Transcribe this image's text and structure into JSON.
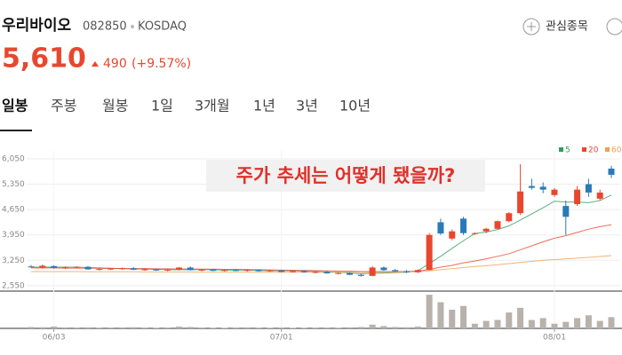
{
  "header": {
    "name": "우리바이오",
    "code": "082850",
    "market": "KOSDAQ",
    "watch": "관심종목"
  },
  "quote": {
    "price": "5,610",
    "change": "490",
    "percent": "(+9.57%)"
  },
  "tabs": [
    "일봉",
    "주봉",
    "월봉",
    "1일",
    "3개월",
    "1년",
    "3년",
    "10년"
  ],
  "chart_data": {
    "type": "candlestick",
    "annotation": "주가 추세는 어떻게 됐을까?",
    "categories": [
      null,
      null,
      "06/03",
      null,
      null,
      null,
      null,
      null,
      null,
      null,
      null,
      null,
      null,
      null,
      null,
      null,
      null,
      null,
      null,
      null,
      null,
      null,
      "07/01",
      null,
      null,
      null,
      null,
      null,
      null,
      null,
      null,
      null,
      null,
      null,
      null,
      null,
      null,
      null,
      null,
      null,
      null,
      null,
      null,
      null,
      null,
      null,
      "08/01",
      null,
      null,
      null,
      null,
      null
    ],
    "open": [
      3080,
      3050,
      3090,
      3040,
      3060,
      3070,
      3000,
      3010,
      3020,
      3030,
      2990,
      3000,
      2970,
      2990,
      3050,
      2980,
      2990,
      2960,
      2980,
      2960,
      2990,
      2950,
      2970,
      2930,
      2950,
      2920,
      2930,
      2890,
      2900,
      2850,
      2820,
      3050,
      2980,
      2950,
      2920,
      2980,
      4300,
      3850,
      4400,
      3980,
      4050,
      4120,
      4330,
      4550,
      5300,
      5280,
      5050,
      4750,
      4800,
      5350,
      4950,
      5780
    ],
    "high": [
      3120,
      3130,
      3110,
      3080,
      3090,
      3090,
      3040,
      3040,
      3050,
      3060,
      3030,
      3020,
      3010,
      3060,
      3080,
      3010,
      3010,
      3000,
      3000,
      3010,
      3000,
      2990,
      2990,
      2970,
      2980,
      2950,
      2950,
      2920,
      2920,
      2880,
      3090,
      3080,
      3010,
      2980,
      3000,
      4000,
      4400,
      4100,
      4450,
      4020,
      4150,
      4350,
      4580,
      5900,
      5500,
      5400,
      5250,
      4900,
      5300,
      5500,
      5200,
      5860
    ],
    "low": [
      3050,
      3020,
      3020,
      3010,
      3030,
      2990,
      2970,
      2980,
      2990,
      2980,
      2960,
      2960,
      2950,
      2970,
      2970,
      2950,
      2950,
      2940,
      2950,
      2940,
      2940,
      2930,
      2920,
      2910,
      2910,
      2890,
      2880,
      2860,
      2840,
      2800,
      2810,
      2960,
      2930,
      2900,
      2900,
      2970,
      3950,
      3800,
      3950,
      3950,
      4000,
      4100,
      4300,
      4500,
      5200,
      5100,
      5000,
      3950,
      4750,
      5000,
      4900,
      5520
    ],
    "close": [
      3070,
      3100,
      3040,
      3060,
      3070,
      3000,
      3010,
      3020,
      3030,
      2990,
      3000,
      2970,
      2990,
      3050,
      2980,
      2990,
      2960,
      2980,
      2960,
      2990,
      2950,
      2970,
      2930,
      2950,
      2920,
      2930,
      2890,
      2900,
      2850,
      2820,
      3050,
      2980,
      2950,
      2920,
      2980,
      3950,
      3990,
      4050,
      4000,
      4000,
      4120,
      4330,
      4550,
      5150,
      5250,
      5200,
      5200,
      4450,
      5200,
      5120,
      5120,
      5610
    ],
    "volume": [
      150,
      120,
      200,
      100,
      90,
      110,
      80,
      90,
      100,
      120,
      80,
      70,
      90,
      200,
      150,
      80,
      70,
      60,
      90,
      100,
      80,
      70,
      90,
      60,
      70,
      80,
      90,
      70,
      110,
      150,
      400,
      250,
      150,
      120,
      200,
      3600,
      2800,
      2000,
      2400,
      500,
      800,
      900,
      1700,
      2200,
      900,
      1100,
      500,
      700,
      1100,
      1400,
      800,
      1200
    ],
    "series": [
      {
        "name": "5",
        "color": "#2e9e5b",
        "values": [
          3060,
          3060,
          3060,
          3060,
          3060,
          3050,
          3040,
          3030,
          3020,
          3010,
          3010,
          3000,
          2990,
          2990,
          2990,
          2990,
          2990,
          2980,
          2980,
          2980,
          2970,
          2960,
          2960,
          2960,
          2950,
          2940,
          2930,
          2920,
          2900,
          2880,
          2890,
          2900,
          2910,
          2920,
          2960,
          3160,
          3360,
          3580,
          3790,
          3990,
          4030,
          4100,
          4200,
          4360,
          4530,
          4700,
          4880,
          4860,
          4860,
          4840,
          4900,
          5050
        ]
      },
      {
        "name": "20",
        "color": "#e8472e",
        "values": [
          3040,
          3040,
          3040,
          3035,
          3035,
          3030,
          3030,
          3025,
          3025,
          3020,
          3020,
          3015,
          3015,
          3010,
          3010,
          3005,
          3005,
          3000,
          3000,
          2995,
          2990,
          2985,
          2980,
          2975,
          2970,
          2965,
          2960,
          2955,
          2950,
          2940,
          2940,
          2940,
          2940,
          2940,
          2950,
          3000,
          3060,
          3110,
          3180,
          3230,
          3290,
          3360,
          3430,
          3540,
          3650,
          3760,
          3860,
          3930,
          4020,
          4110,
          4180,
          4230
        ]
      },
      {
        "name": "60",
        "color": "#f0a050",
        "values": [
          2940,
          2940,
          2940,
          2940,
          2940,
          2935,
          2935,
          2935,
          2935,
          2935,
          2930,
          2930,
          2930,
          2930,
          2930,
          2925,
          2925,
          2925,
          2925,
          2925,
          2920,
          2920,
          2920,
          2920,
          2920,
          2920,
          2920,
          2920,
          2920,
          2920,
          2920,
          2925,
          2925,
          2930,
          2935,
          2960,
          2990,
          3020,
          3050,
          3080,
          3100,
          3130,
          3160,
          3190,
          3220,
          3250,
          3270,
          3290,
          3310,
          3330,
          3355,
          3380
        ]
      }
    ],
    "up_color": "#e8472e",
    "down_color": "#2a7ab8",
    "volume_color": "#b8b2ab",
    "ylim": [
      2400,
      6270
    ],
    "yticks": [
      {
        "value": 2550,
        "label": "2,550"
      },
      {
        "value": 3250,
        "label": "3,250"
      },
      {
        "value": 3950,
        "label": "3,950"
      },
      {
        "value": 4650,
        "label": "4,650"
      },
      {
        "value": 5350,
        "label": "5,350"
      },
      {
        "value": 6050,
        "label": "6,050"
      }
    ],
    "vlim": [
      0,
      3800
    ],
    "grid": true
  }
}
